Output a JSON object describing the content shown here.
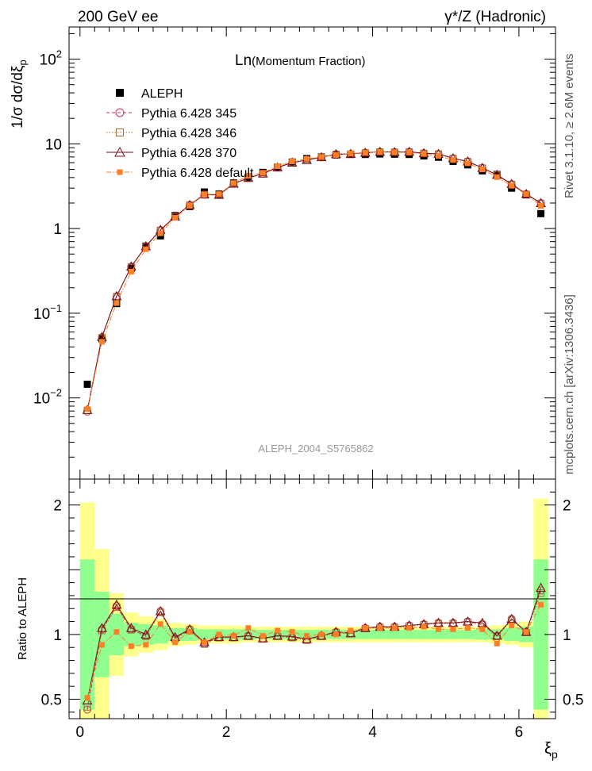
{
  "header": {
    "left": "200 GeV ee",
    "right": "γ*/Z (Hadronic)"
  },
  "side": {
    "rivet": "Rivet 3.1.10, ≥ 2.6M events",
    "mcplots": "mcplots.cern.ch [arXiv:1306.3436]"
  },
  "chart_data": [
    {
      "type": "scatter",
      "title": "Ln",
      "subtitle": "(Momentum Fraction)",
      "ylabel": "1/σ dσ/dξ",
      "ylabel_sub": "p",
      "xlabel": "ξ",
      "xlabel_sub": "p",
      "yscale": "log",
      "xlim": [
        -0.15,
        6.5
      ],
      "ylim": [
        0.0011,
        240
      ],
      "watermark": "ALEPH_2004_S5765862",
      "ytick_labels": [
        {
          "value": 0.01,
          "base": "10",
          "exp": "−2"
        },
        {
          "value": 0.1,
          "base": "10",
          "exp": "−1"
        },
        {
          "value": 1,
          "base": "1",
          "exp": ""
        },
        {
          "value": 10,
          "base": "10",
          "exp": ""
        },
        {
          "value": 100,
          "base": "10",
          "exp": "2"
        }
      ],
      "x": [
        0.1,
        0.3,
        0.5,
        0.7,
        0.9,
        1.1,
        1.3,
        1.5,
        1.7,
        1.9,
        2.1,
        2.3,
        2.5,
        2.7,
        2.9,
        3.1,
        3.3,
        3.5,
        3.7,
        3.9,
        4.1,
        4.3,
        4.5,
        4.7,
        4.9,
        5.1,
        5.3,
        5.5,
        5.7,
        5.9,
        6.1,
        6.3
      ],
      "legend": [
        {
          "label": "ALEPH",
          "color": "#000000",
          "marker": "filled-square",
          "line": "none"
        },
        {
          "label": "Pythia 6.428 345",
          "color": "#cc3355",
          "marker": "open-circle",
          "line": "dashed"
        },
        {
          "label": "Pythia 6.428 346",
          "color": "#a07030",
          "marker": "open-square",
          "line": "dotted"
        },
        {
          "label": "Pythia 6.428 370",
          "color": "#7a0a1a",
          "marker": "open-triangle",
          "line": "solid"
        },
        {
          "label": "Pythia 6.428 default",
          "color": "#ff7f27",
          "marker": "filled-square",
          "line": "dashdot"
        }
      ],
      "series": [
        {
          "name": "ALEPH",
          "values": [
            0.0145,
            0.05,
            0.13,
            0.34,
            0.62,
            0.82,
            1.42,
            1.82,
            2.7,
            2.55,
            3.45,
            4.0,
            4.6,
            5.3,
            6.1,
            6.7,
            7.0,
            7.4,
            7.5,
            7.5,
            7.6,
            7.55,
            7.5,
            7.2,
            6.95,
            6.2,
            5.65,
            4.8,
            4.35,
            3.0,
            2.5,
            1.5
          ]
        },
        {
          "name": "Pythia 6.428 345",
          "values": [
            0.0069,
            0.052,
            0.158,
            0.355,
            0.615,
            0.96,
            1.38,
            1.9,
            2.52,
            2.49,
            3.38,
            3.95,
            4.45,
            5.25,
            6.0,
            6.45,
            6.95,
            7.55,
            7.6,
            7.85,
            8.05,
            8.0,
            8.05,
            7.75,
            7.6,
            6.75,
            6.2,
            5.2,
            4.3,
            3.35,
            2.55,
            2.0
          ]
        },
        {
          "name": "Pythia 6.428 346",
          "values": [
            0.0071,
            0.0515,
            0.157,
            0.352,
            0.61,
            0.95,
            1.37,
            1.89,
            2.5,
            2.48,
            3.37,
            3.93,
            4.43,
            5.23,
            5.98,
            6.43,
            6.93,
            7.52,
            7.57,
            7.82,
            8.02,
            7.97,
            8.02,
            7.72,
            7.57,
            6.72,
            6.17,
            5.18,
            4.28,
            3.33,
            2.54,
            1.98
          ]
        },
        {
          "name": "Pythia 6.428 370",
          "values": [
            0.0072,
            0.0525,
            0.159,
            0.356,
            0.618,
            0.965,
            1.39,
            1.9,
            2.53,
            2.5,
            3.39,
            3.96,
            4.46,
            5.26,
            6.01,
            6.46,
            6.96,
            7.56,
            7.61,
            7.86,
            8.06,
            8.01,
            8.06,
            7.76,
            7.61,
            6.76,
            6.21,
            5.21,
            4.31,
            3.36,
            2.56,
            2.0
          ]
        },
        {
          "name": "Pythia 6.428 default",
          "values": [
            0.0074,
            0.046,
            0.132,
            0.31,
            0.57,
            0.88,
            1.34,
            1.86,
            2.53,
            2.55,
            3.43,
            4.2,
            4.55,
            5.45,
            6.2,
            6.65,
            7.0,
            7.4,
            7.7,
            7.85,
            8.0,
            7.95,
            7.9,
            7.6,
            7.2,
            6.45,
            5.9,
            5.0,
            4.05,
            3.2,
            2.55,
            1.85
          ]
        }
      ]
    },
    {
      "type": "line",
      "title": "",
      "ylabel": "Ratio to ALEPH",
      "xlabel": "ξ",
      "xlabel_sub": "p",
      "xlim": [
        -0.15,
        6.5
      ],
      "ylim": [
        0.35,
        2.2
      ],
      "yticks": [
        0.5,
        1,
        1.5,
        2
      ],
      "ytick_labels": [
        {
          "value": 0.5,
          "text": "0.5"
        },
        {
          "value": 1,
          "text": "1"
        },
        {
          "value": 2,
          "text": "2"
        }
      ],
      "xticks": [
        0,
        2,
        4,
        6
      ],
      "xtick_labels": [
        "0",
        "2",
        "4",
        "6"
      ],
      "reference_line": 1,
      "band_green_halfwidth": [
        0.58,
        0.33,
        0.16,
        0.09,
        0.08,
        0.07,
        0.05,
        0.05,
        0.04,
        0.04,
        0.04,
        0.04,
        0.035,
        0.035,
        0.035,
        0.035,
        0.035,
        0.035,
        0.035,
        0.035,
        0.035,
        0.035,
        0.035,
        0.035,
        0.035,
        0.035,
        0.035,
        0.04,
        0.04,
        0.05,
        0.06,
        0.58
      ],
      "band_yellow_halfwidth": [
        1.02,
        0.66,
        0.32,
        0.17,
        0.14,
        0.12,
        0.09,
        0.08,
        0.07,
        0.07,
        0.07,
        0.06,
        0.06,
        0.06,
        0.06,
        0.06,
        0.06,
        0.06,
        0.06,
        0.06,
        0.06,
        0.06,
        0.06,
        0.06,
        0.06,
        0.06,
        0.06,
        0.06,
        0.07,
        0.08,
        0.1,
        1.05
      ],
      "series": [
        {
          "name": "Pythia 6.428 345",
          "values": [
            0.42,
            1.04,
            1.22,
            1.04,
            0.99,
            1.18,
            0.97,
            1.04,
            0.93,
            0.98,
            0.98,
            0.99,
            0.97,
            0.99,
            0.98,
            0.96,
            0.99,
            1.02,
            1.01,
            1.05,
            1.06,
            1.06,
            1.07,
            1.08,
            1.09,
            1.09,
            1.1,
            1.08,
            0.99,
            1.12,
            1.02,
            1.34
          ]
        },
        {
          "name": "Pythia 6.428 346",
          "values": [
            0.44,
            1.03,
            1.21,
            1.035,
            0.985,
            1.17,
            0.965,
            1.035,
            0.925,
            0.975,
            0.975,
            0.985,
            0.965,
            0.985,
            0.975,
            0.955,
            0.985,
            1.015,
            1.005,
            1.045,
            1.055,
            1.055,
            1.065,
            1.075,
            1.085,
            1.085,
            1.095,
            1.075,
            0.985,
            1.11,
            1.015,
            1.32
          ]
        },
        {
          "name": "Pythia 6.428 370",
          "values": [
            0.49,
            1.05,
            1.23,
            1.05,
            1.0,
            1.18,
            0.98,
            1.04,
            0.94,
            0.98,
            0.98,
            0.99,
            0.97,
            0.99,
            0.985,
            0.965,
            0.99,
            1.02,
            1.01,
            1.05,
            1.06,
            1.06,
            1.07,
            1.08,
            1.09,
            1.09,
            1.1,
            1.09,
            0.99,
            1.12,
            1.02,
            1.36
          ]
        },
        {
          "name": "Pythia 6.428 default",
          "values": [
            0.51,
            0.92,
            1.02,
            0.91,
            0.92,
            1.08,
            0.94,
            1.02,
            0.94,
            1.0,
            0.99,
            1.05,
            0.99,
            1.03,
            1.02,
            0.99,
            1.0,
            1.0,
            1.03,
            1.05,
            1.05,
            1.05,
            1.05,
            1.06,
            1.04,
            1.04,
            1.05,
            1.04,
            0.93,
            1.07,
            1.02,
            1.23
          ]
        }
      ]
    }
  ]
}
